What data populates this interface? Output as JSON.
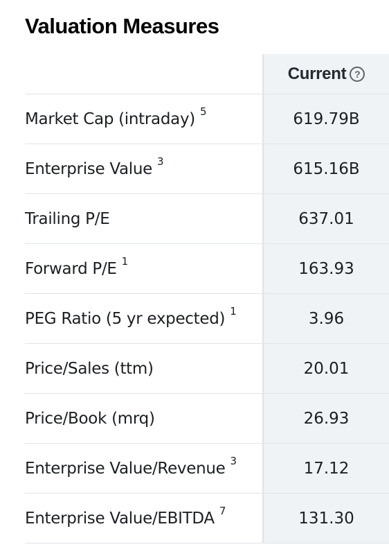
{
  "title": "Valuation Measures",
  "header": {
    "current_label": "Current",
    "help_icon": "question-circle-icon",
    "help_glyph": "?"
  },
  "rows": [
    {
      "label": "Market Cap (intraday)",
      "footnote": "5",
      "value": "619.79B"
    },
    {
      "label": "Enterprise Value",
      "footnote": "3",
      "value": "615.16B"
    },
    {
      "label": "Trailing P/E",
      "footnote": "",
      "value": "637.01"
    },
    {
      "label": "Forward P/E",
      "footnote": "1",
      "value": "163.93"
    },
    {
      "label": "PEG Ratio (5 yr expected)",
      "footnote": "1",
      "value": "3.96"
    },
    {
      "label": "Price/Sales (ttm)",
      "footnote": "",
      "value": "20.01"
    },
    {
      "label": "Price/Book (mrq)",
      "footnote": "",
      "value": "26.93"
    },
    {
      "label": "Enterprise Value/Revenue",
      "footnote": "3",
      "value": "17.12"
    },
    {
      "label": "Enterprise Value/EBITDA",
      "footnote": "7",
      "value": "131.30"
    }
  ]
}
